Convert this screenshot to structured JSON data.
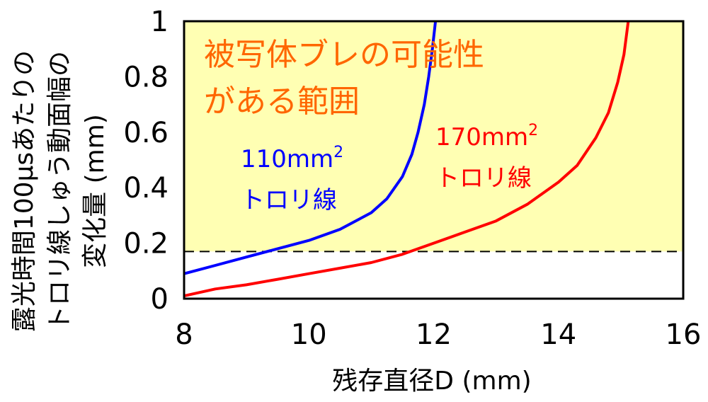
{
  "chart_data": {
    "type": "line",
    "xlabel": "残存直径D (mm)",
    "ylabel_lines": [
      "露光時間100μsあたりの",
      "トロリ線しゅう動面幅の",
      "変化量 (mm)"
    ],
    "xlim": [
      8,
      16
    ],
    "ylim": [
      0,
      1
    ],
    "x_ticks": [
      "8",
      "10",
      "12",
      "14",
      "16"
    ],
    "y_ticks": [
      "0",
      "0.2",
      "0.4",
      "0.6",
      "0.8",
      "1"
    ],
    "threshold": 0.17,
    "region_label_lines": [
      "被写体ブレの可能性",
      "がある範囲"
    ],
    "region_color": "#ffffb3",
    "grid": false,
    "series": [
      {
        "name_lines": [
          "110mm2",
          "トロリ線"
        ],
        "color": "#0000ff",
        "x": [
          8.0,
          8.5,
          9.0,
          9.5,
          10.0,
          10.5,
          11.0,
          11.25,
          11.5,
          11.65,
          11.75,
          11.85,
          11.92,
          11.98,
          12.03
        ],
        "y": [
          0.09,
          0.12,
          0.15,
          0.18,
          0.21,
          0.25,
          0.31,
          0.36,
          0.44,
          0.52,
          0.6,
          0.7,
          0.8,
          0.9,
          1.0
        ]
      },
      {
        "name_lines": [
          "170mm2",
          "トロリ線"
        ],
        "color": "#ff0000",
        "x": [
          8.0,
          8.5,
          9.0,
          9.5,
          10.0,
          10.5,
          11.0,
          11.5,
          12.0,
          12.5,
          13.0,
          13.5,
          14.0,
          14.3,
          14.6,
          14.8,
          14.95,
          15.05,
          15.12
        ],
        "y": [
          0.01,
          0.035,
          0.05,
          0.07,
          0.09,
          0.11,
          0.13,
          0.16,
          0.2,
          0.24,
          0.28,
          0.34,
          0.42,
          0.48,
          0.58,
          0.67,
          0.78,
          0.88,
          1.0
        ]
      }
    ]
  }
}
